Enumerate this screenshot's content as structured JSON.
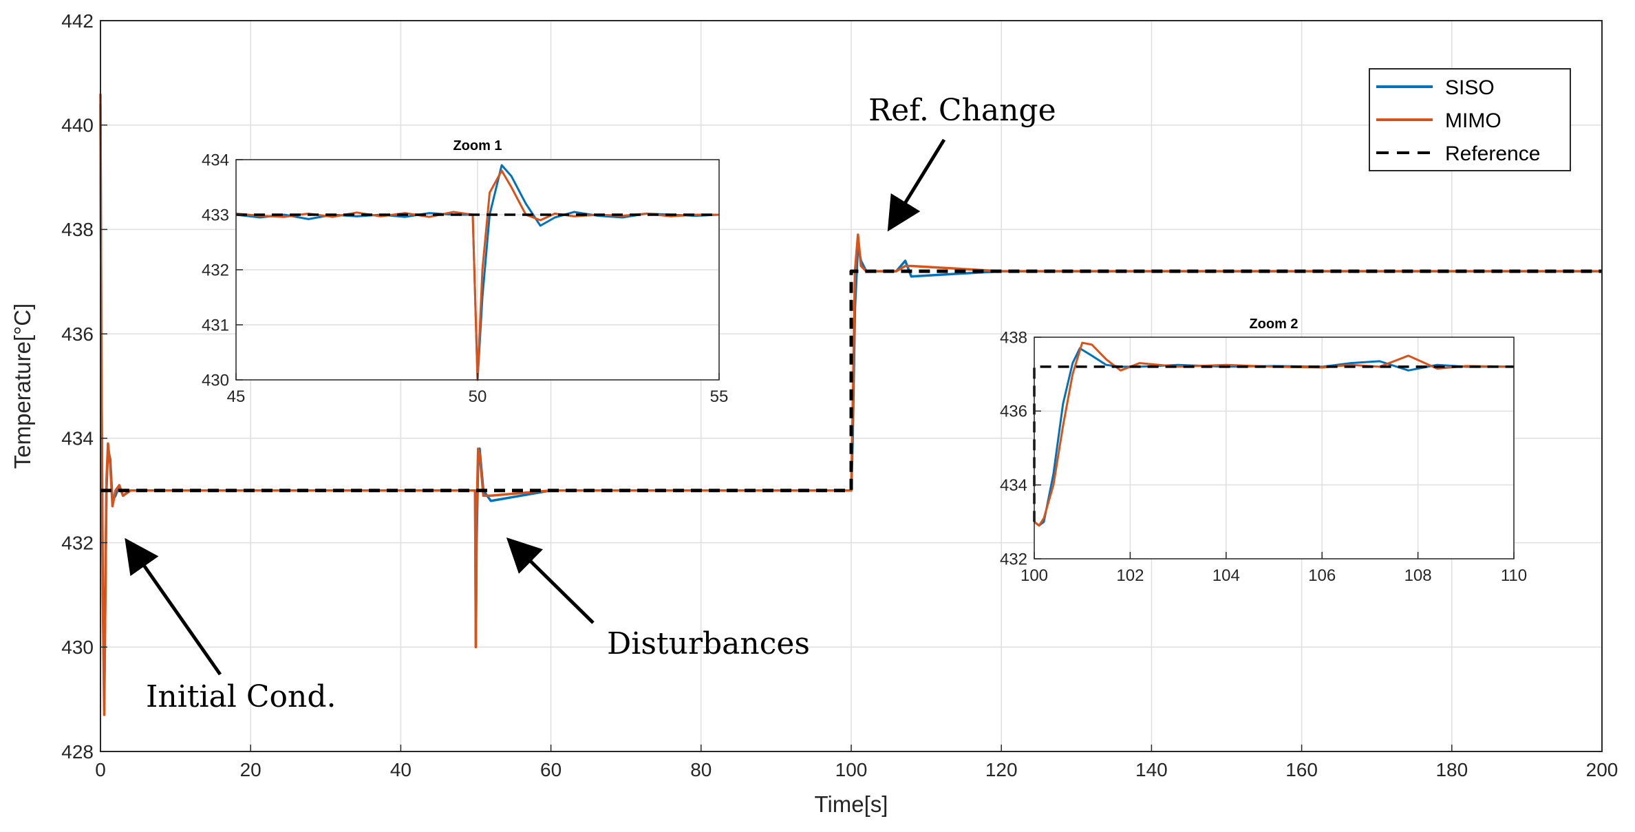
{
  "chart_data": {
    "type": "line",
    "xlabel": "Time[s]",
    "ylabel": "Temperature[°C]",
    "xlim": [
      0,
      200
    ],
    "ylim": [
      428,
      442
    ],
    "xticks": [
      0,
      20,
      40,
      60,
      80,
      100,
      120,
      140,
      160,
      180,
      200
    ],
    "yticks": [
      428,
      430,
      432,
      434,
      436,
      438,
      440,
      442
    ],
    "grid": true,
    "legend_position": "top-right",
    "colors": {
      "siso": "#0072BD",
      "mimo": "#D95319",
      "reference": "#000000"
    },
    "series": [
      {
        "name": "SISO",
        "style": "solid",
        "x": [
          0,
          0.1,
          0.3,
          0.5,
          0.8,
          1.0,
          1.3,
          1.6,
          2.0,
          2.5,
          3.0,
          4.0,
          10,
          30,
          49.9,
          50.0,
          50.1,
          50.3,
          50.5,
          51.0,
          52.0,
          60,
          90,
          99.9,
          100.0,
          100.2,
          100.5,
          100.9,
          101.3,
          102.0,
          104,
          106,
          107.2,
          108,
          120,
          160,
          200
        ],
        "y": [
          440.4,
          436.0,
          431.5,
          429.0,
          433.0,
          433.8,
          433.6,
          432.8,
          432.9,
          433.1,
          432.9,
          433.0,
          433.0,
          433.0,
          433.0,
          430.0,
          432.0,
          433.5,
          433.8,
          433.0,
          432.8,
          433.0,
          433.0,
          433.0,
          433.0,
          434.0,
          436.5,
          437.7,
          437.4,
          437.2,
          437.2,
          437.2,
          437.4,
          437.1,
          437.2,
          437.2,
          437.2
        ]
      },
      {
        "name": "MIMO",
        "style": "solid",
        "x": [
          0,
          0.1,
          0.3,
          0.5,
          0.8,
          1.0,
          1.3,
          1.6,
          2.0,
          2.5,
          3.0,
          4.0,
          10,
          30,
          49.9,
          50.0,
          50.1,
          50.3,
          50.5,
          51.0,
          52.0,
          60,
          90,
          99.9,
          100.0,
          100.2,
          100.5,
          100.9,
          101.3,
          102.0,
          104,
          106,
          107.2,
          108,
          120,
          160,
          200
        ],
        "y": [
          440.6,
          436.2,
          431.0,
          428.7,
          433.2,
          433.9,
          433.5,
          432.7,
          433.0,
          433.1,
          432.9,
          433.0,
          433.0,
          433.0,
          433.0,
          430.0,
          432.5,
          433.8,
          433.7,
          432.9,
          432.9,
          433.0,
          433.0,
          433.0,
          433.0,
          434.5,
          437.2,
          437.9,
          437.3,
          437.2,
          437.2,
          437.2,
          437.3,
          437.3,
          437.2,
          437.2,
          437.2
        ]
      },
      {
        "name": "Reference",
        "style": "dashed",
        "x": [
          0,
          100,
          100,
          200
        ],
        "y": [
          433,
          433,
          437.2,
          437.2
        ]
      }
    ],
    "insets": [
      {
        "title": "Zoom 1",
        "xlim": [
          45,
          55
        ],
        "ylim": [
          430,
          434
        ],
        "xticks": [
          45,
          50,
          55
        ],
        "yticks": [
          430,
          431,
          432,
          433,
          434
        ],
        "series": [
          {
            "name": "SISO",
            "x": [
              45,
              45.5,
              46.0,
              46.5,
              47.0,
              47.5,
              48.0,
              48.5,
              49.0,
              49.5,
              49.9,
              50.0,
              50.1,
              50.25,
              50.5,
              50.7,
              51.0,
              51.3,
              51.6,
              52.0,
              52.5,
              53.0,
              53.5,
              54.0,
              54.5,
              55
            ],
            "y": [
              433.0,
              432.95,
              433.0,
              432.92,
              433.0,
              432.97,
              433.0,
              432.96,
              433.03,
              433.0,
              433.0,
              430.0,
              431.5,
              433.0,
              433.9,
              433.7,
              433.2,
              432.8,
              432.95,
              433.05,
              432.98,
              432.95,
              433.02,
              433.0,
              432.98,
              433.0
            ]
          },
          {
            "name": "MIMO",
            "x": [
              45,
              45.5,
              46.0,
              46.5,
              47.0,
              47.5,
              48.0,
              48.5,
              49.0,
              49.5,
              49.9,
              50.0,
              50.1,
              50.25,
              50.5,
              50.7,
              51.0,
              51.3,
              51.6,
              52.0,
              52.5,
              53.0,
              53.5,
              54.0,
              54.5,
              55
            ],
            "y": [
              433.02,
              432.98,
              432.96,
              433.02,
              432.96,
              433.04,
              432.97,
              433.03,
              432.96,
              433.05,
              433.0,
              430.0,
              432.0,
              433.4,
              433.8,
              433.5,
              433.0,
              432.9,
              433.02,
              432.97,
              433.0,
              432.98,
              433.02,
              432.97,
              433.0,
              433.0
            ]
          },
          {
            "name": "Reference",
            "x": [
              45,
              55
            ],
            "y": [
              433,
              433
            ]
          }
        ]
      },
      {
        "title": "Zoom 2",
        "xlim": [
          100,
          110
        ],
        "ylim": [
          432,
          438
        ],
        "xticks": [
          100,
          102,
          104,
          106,
          108,
          110
        ],
        "yticks": [
          432,
          434,
          436,
          438
        ],
        "series": [
          {
            "name": "SISO",
            "x": [
              100,
              100.1,
              100.2,
              100.4,
              100.6,
              100.8,
              100.95,
              101.2,
              101.5,
              101.8,
              102.2,
              103,
              104,
              105,
              106,
              106.6,
              107.2,
              107.8,
              108.4,
              109,
              110
            ],
            "y": [
              433.0,
              432.9,
              433.0,
              434.3,
              436.2,
              437.3,
              437.7,
              437.5,
              437.25,
              437.2,
              437.2,
              437.25,
              437.2,
              437.22,
              437.2,
              437.3,
              437.35,
              437.1,
              437.25,
              437.2,
              437.2
            ]
          },
          {
            "name": "MIMO",
            "x": [
              100,
              100.1,
              100.2,
              100.4,
              100.6,
              100.8,
              101.0,
              101.2,
              101.5,
              101.8,
              102.2,
              103,
              104,
              105,
              106,
              106.6,
              107.2,
              107.8,
              108.4,
              109,
              110
            ],
            "y": [
              433.0,
              432.9,
              433.1,
              434.0,
              435.6,
              437.0,
              437.85,
              437.8,
              437.4,
              437.1,
              437.3,
              437.2,
              437.25,
              437.2,
              437.18,
              437.25,
              437.2,
              437.5,
              437.15,
              437.22,
              437.2
            ]
          },
          {
            "name": "Reference",
            "x": [
              100,
              100,
              110
            ],
            "y": [
              433,
              437.2,
              437.2
            ]
          }
        ]
      }
    ],
    "annotations": [
      {
        "text": "Initial Cond.",
        "target": [
          1,
          432
        ]
      },
      {
        "text": "Disturbances",
        "target": [
          54,
          432
        ]
      },
      {
        "text": "Ref. Change",
        "target": [
          104,
          438
        ]
      }
    ]
  }
}
